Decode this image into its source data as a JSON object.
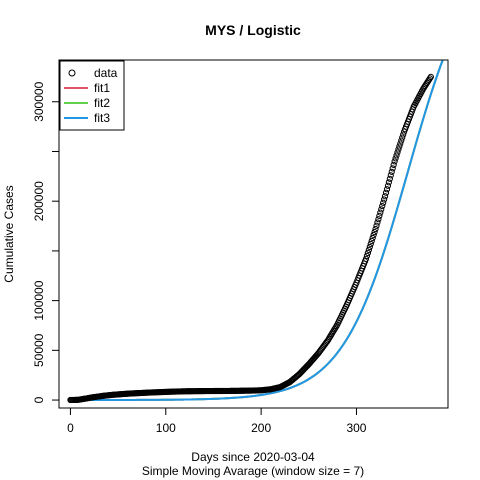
{
  "chart_data": {
    "type": "line",
    "title": "MYS / Logistic",
    "xlabel": "Days since 2020-03-04",
    "xlabel2": "Simple Moving Avarage (window size = 7)",
    "ylabel": "Cumulative Cases",
    "xlim": [
      -12,
      396
    ],
    "ylim": [
      -8000,
      342000
    ],
    "xticks": [
      0,
      100,
      200,
      300
    ],
    "xtick_labels": [
      "0",
      "100",
      "200",
      "300"
    ],
    "yticks": [
      0,
      50000,
      100000,
      200000,
      300000
    ],
    "ytick_labels": [
      "0",
      "50000",
      "100000",
      "200000",
      "300000"
    ],
    "grid": false,
    "legend_position": "top-left",
    "legend": [
      {
        "label": "data",
        "kind": "point",
        "color": "#000000"
      },
      {
        "label": "fit1",
        "kind": "line",
        "color": "#DF536B"
      },
      {
        "label": "fit2",
        "kind": "line",
        "color": "#61D04F"
      },
      {
        "label": "fit3",
        "kind": "line",
        "color": "#2297E6"
      }
    ],
    "series": [
      {
        "name": "data",
        "style": "points",
        "color": "#000000",
        "x_start": 0,
        "x_step": 1,
        "x_end": 378,
        "anchors": [
          [
            0,
            50
          ],
          [
            8,
            200
          ],
          [
            15,
            1300
          ],
          [
            25,
            3000
          ],
          [
            35,
            4300
          ],
          [
            45,
            5300
          ],
          [
            60,
            6400
          ],
          [
            80,
            7400
          ],
          [
            100,
            8200
          ],
          [
            120,
            8800
          ],
          [
            140,
            9000
          ],
          [
            170,
            9200
          ],
          [
            190,
            9500
          ],
          [
            200,
            9800
          ],
          [
            210,
            10800
          ],
          [
            220,
            13000
          ],
          [
            230,
            18000
          ],
          [
            240,
            26000
          ],
          [
            250,
            36000
          ],
          [
            260,
            47000
          ],
          [
            270,
            60000
          ],
          [
            280,
            76000
          ],
          [
            290,
            96000
          ],
          [
            300,
            118000
          ],
          [
            310,
            142000
          ],
          [
            320,
            172000
          ],
          [
            330,
            205000
          ],
          [
            340,
            240000
          ],
          [
            350,
            270000
          ],
          [
            360,
            295000
          ],
          [
            370,
            313000
          ],
          [
            378,
            325000
          ]
        ]
      },
      {
        "name": "fit1",
        "style": "line",
        "color": "#DF536B",
        "logistic": {
          "K": 460000,
          "r": 0.0292,
          "t0": 354
        }
      },
      {
        "name": "fit2",
        "style": "line",
        "color": "#61D04F",
        "logistic": {
          "K": 460000,
          "r": 0.0292,
          "t0": 354
        }
      },
      {
        "name": "fit3",
        "style": "line",
        "color": "#2297E6",
        "logistic": {
          "K": 460000,
          "r": 0.0292,
          "t0": 354
        }
      }
    ]
  }
}
